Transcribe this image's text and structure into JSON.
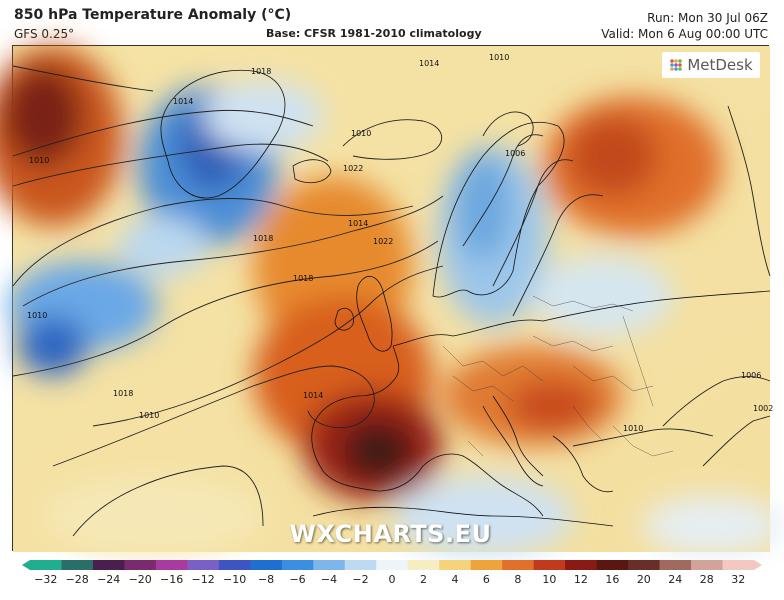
{
  "header": {
    "title": "850 hPa Temperature Anomaly (°C)",
    "model": "GFS 0.25°",
    "base": "Base: CFSR 1981-2010 climatology",
    "run": "Run: Mon 30 Jul 06Z",
    "valid": "Valid: Mon 6 Aug 00:00 UTC"
  },
  "brand": {
    "name": "MetDesk",
    "icon": "metdesk-logo-icon"
  },
  "watermark": "WXCHARTS.EU",
  "isobars": {
    "labels": [
      "1010",
      "1014",
      "1018",
      "1022",
      "1010",
      "1014",
      "1018",
      "1022",
      "1010",
      "1006",
      "1010",
      "1018",
      "1014",
      "1006",
      "1002",
      "1010",
      "1014",
      "1018",
      "1010"
    ]
  },
  "colorbar": {
    "ticks": [
      "−32",
      "−28",
      "−24",
      "−20",
      "−16",
      "−12",
      "−10",
      "−8",
      "−6",
      "−4",
      "−2",
      "0",
      "2",
      "4",
      "6",
      "8",
      "10",
      "12",
      "16",
      "20",
      "24",
      "28",
      "32"
    ],
    "colors": [
      "#1fae8f",
      "#2a6e6a",
      "#4a1f4f",
      "#7a2a6f",
      "#a93aa0",
      "#7a5fc4",
      "#3d55c2",
      "#1f6fd0",
      "#3a8fe0",
      "#7cb6ea",
      "#bcdaf1",
      "#eef4f8",
      "#f6eec2",
      "#f4d37a",
      "#eea43a",
      "#e0702a",
      "#c23a1c",
      "#8a1a14",
      "#5a1610",
      "#6a2e2a",
      "#a06a5e",
      "#d2a39a",
      "#f2c8c0"
    ]
  }
}
